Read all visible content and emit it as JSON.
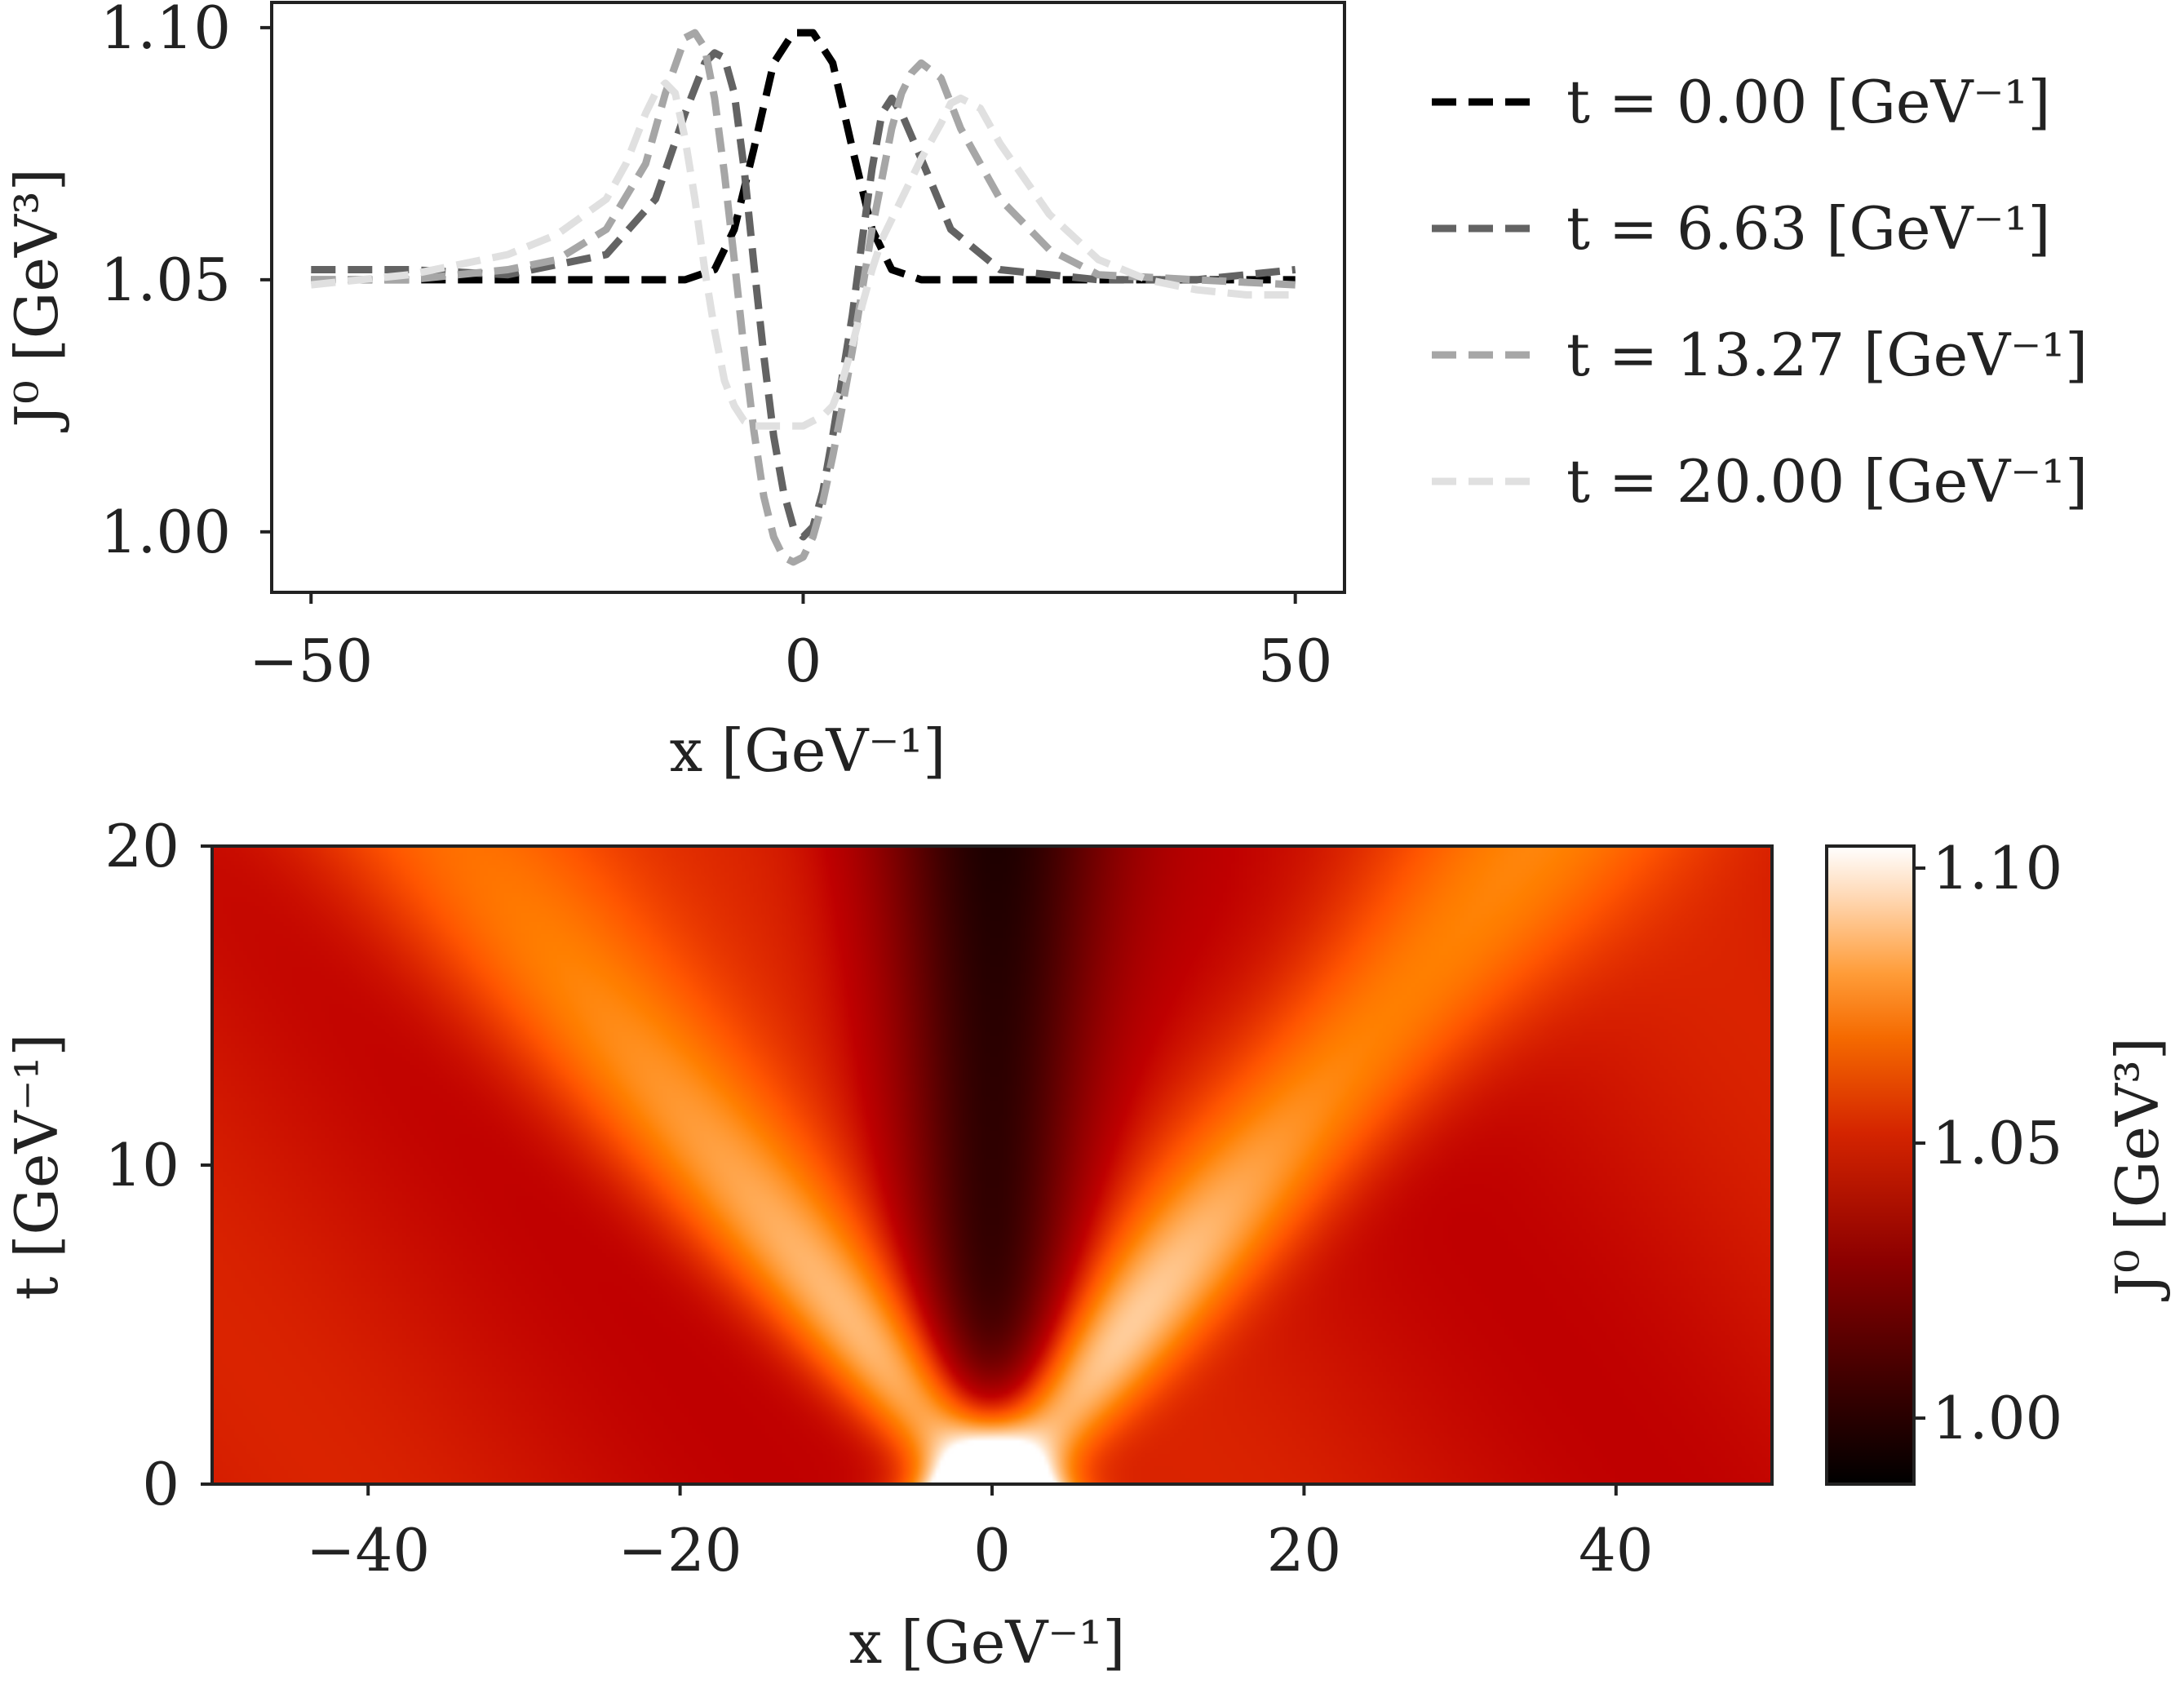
{
  "chart_data": [
    {
      "type": "line",
      "panel": "top",
      "xlabel": "x [GeV⁻¹]",
      "ylabel": "J⁰ [GeV³]",
      "xlim": [
        -54,
        55
      ],
      "ylim": [
        0.988,
        1.105
      ],
      "xticks": [
        {
          "value": -50,
          "label": "−50"
        },
        {
          "value": 0,
          "label": "0"
        },
        {
          "value": 50,
          "label": "50"
        }
      ],
      "yticks": [
        {
          "value": 1.0,
          "label": "1.00"
        },
        {
          "value": 1.05,
          "label": "1.05"
        },
        {
          "value": 1.1,
          "label": "1.10"
        }
      ],
      "legend_position": "outside-right",
      "series": [
        {
          "name": "t = 0.00 [GeV⁻¹]",
          "color": "#000000",
          "x": [
            -50,
            -40,
            -30,
            -20,
            -12,
            -9,
            -7,
            -5,
            -3,
            -1,
            0,
            1,
            3,
            5,
            7,
            9,
            12,
            20,
            30,
            40,
            50
          ],
          "y": [
            1.05,
            1.05,
            1.05,
            1.05,
            1.05,
            1.052,
            1.06,
            1.076,
            1.093,
            1.099,
            1.099,
            1.099,
            1.093,
            1.076,
            1.06,
            1.052,
            1.05,
            1.05,
            1.05,
            1.05,
            1.05
          ]
        },
        {
          "name": "t = 6.63 [GeV⁻¹]",
          "color": "#636363",
          "x": [
            -50,
            -40,
            -30,
            -20,
            -15,
            -12,
            -10,
            -9,
            -8,
            -7,
            -6,
            -5,
            -4,
            -3,
            -2,
            -1,
            0,
            1,
            2,
            3,
            4,
            5,
            6,
            7,
            8,
            9,
            10,
            12,
            15,
            20,
            30,
            40,
            50
          ],
          "y": [
            1.052,
            1.052,
            1.051,
            1.055,
            1.066,
            1.083,
            1.093,
            1.095,
            1.094,
            1.087,
            1.072,
            1.053,
            1.035,
            1.019,
            1.008,
            1.001,
            0.999,
            1.001,
            1.008,
            1.019,
            1.031,
            1.043,
            1.058,
            1.072,
            1.083,
            1.086,
            1.083,
            1.074,
            1.06,
            1.052,
            1.05,
            1.05,
            1.052
          ]
        },
        {
          "name": "t = 13.27 [GeV⁻¹]",
          "color": "#a6a6a6",
          "x": [
            -50,
            -40,
            -30,
            -25,
            -20,
            -16,
            -14,
            -12,
            -11,
            -10,
            -9,
            -8,
            -7,
            -6,
            -5,
            -4,
            -3,
            -2,
            -1,
            0,
            1,
            2,
            3,
            4,
            5,
            6,
            7,
            8,
            9,
            10,
            11,
            12,
            14,
            16,
            20,
            25,
            30,
            40,
            50
          ],
          "y": [
            1.05,
            1.05,
            1.052,
            1.054,
            1.06,
            1.073,
            1.087,
            1.098,
            1.099,
            1.096,
            1.086,
            1.071,
            1.054,
            1.036,
            1.02,
            1.007,
            0.999,
            0.995,
            0.994,
            0.995,
            0.999,
            1.006,
            1.015,
            1.025,
            1.036,
            1.048,
            1.06,
            1.07,
            1.08,
            1.087,
            1.091,
            1.093,
            1.09,
            1.08,
            1.066,
            1.056,
            1.051,
            1.05,
            1.049
          ]
        },
        {
          "name": "t = 20.00 [GeV⁻¹]",
          "color": "#e0e0e0",
          "x": [
            -50,
            -40,
            -30,
            -25,
            -20,
            -18,
            -16,
            -15,
            -14,
            -13,
            -12,
            -11,
            -10,
            -9,
            -8,
            -7,
            -6,
            -5,
            -4,
            -3,
            -2,
            -1,
            0,
            1,
            2,
            3,
            4,
            5,
            6,
            7,
            8,
            10,
            12,
            14,
            15,
            16,
            18,
            20,
            25,
            30,
            35,
            40,
            45,
            50
          ],
          "y": [
            1.049,
            1.051,
            1.055,
            1.059,
            1.066,
            1.073,
            1.083,
            1.087,
            1.089,
            1.087,
            1.078,
            1.066,
            1.052,
            1.04,
            1.03,
            1.025,
            1.022,
            1.021,
            1.021,
            1.021,
            1.021,
            1.021,
            1.021,
            1.022,
            1.023,
            1.025,
            1.03,
            1.037,
            1.045,
            1.052,
            1.058,
            1.066,
            1.074,
            1.081,
            1.085,
            1.086,
            1.084,
            1.077,
            1.063,
            1.054,
            1.05,
            1.048,
            1.047,
            1.047
          ]
        }
      ]
    },
    {
      "type": "heatmap",
      "panel": "bottom",
      "xlabel": "x [GeV⁻¹]",
      "ylabel": "t [GeV⁻¹]",
      "xlim": [
        -50,
        50
      ],
      "ylim": [
        0,
        20
      ],
      "xticks": [
        {
          "value": -40,
          "label": "−40"
        },
        {
          "value": -20,
          "label": "−20"
        },
        {
          "value": 0,
          "label": "0"
        },
        {
          "value": 20,
          "label": "20"
        },
        {
          "value": 40,
          "label": "40"
        }
      ],
      "yticks": [
        {
          "value": 0,
          "label": "0"
        },
        {
          "value": 10,
          "label": "10"
        },
        {
          "value": 20,
          "label": "20"
        }
      ],
      "colormap": "gist_heat",
      "value_range": [
        0.988,
        1.104
      ],
      "colorbar": {
        "label": "J⁰ [GeV³]",
        "ticks": [
          {
            "value": 1.0,
            "label": "1.00"
          },
          {
            "value": 1.05,
            "label": "1.05"
          },
          {
            "value": 1.1,
            "label": "1.10"
          }
        ]
      }
    }
  ]
}
